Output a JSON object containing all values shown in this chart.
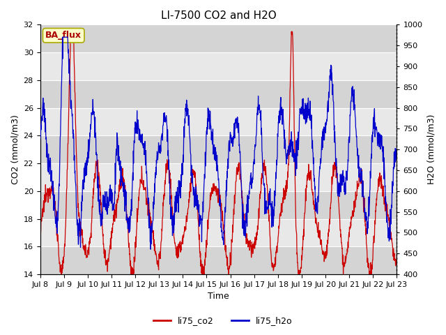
{
  "title": "LI-7500 CO2 and H2O",
  "xlabel": "Time",
  "ylabel_left": "CO2 (mmol/m3)",
  "ylabel_right": "H2O (mmol/m3)",
  "ylim_left": [
    14,
    32
  ],
  "ylim_right": [
    400,
    1000
  ],
  "yticks_left": [
    14,
    16,
    18,
    20,
    22,
    24,
    26,
    28,
    30,
    32
  ],
  "yticks_right": [
    400,
    450,
    500,
    550,
    600,
    650,
    700,
    750,
    800,
    850,
    900,
    950,
    1000
  ],
  "xtick_labels": [
    "Jul 8",
    "Jul 9",
    "Jul 10",
    "Jul 11",
    "Jul 12",
    "Jul 13",
    "Jul 14",
    "Jul 15",
    "Jul 16",
    "Jul 17",
    "Jul 18",
    "Jul 19",
    "Jul 20",
    "Jul 21",
    "Jul 22",
    "Jul 23"
  ],
  "color_co2": "#cc0000",
  "color_h2o": "#0000cc",
  "legend_co2": "li75_co2",
  "legend_h2o": "li75_h2o",
  "ba_flux_label": "BA_flux",
  "ba_flux_bg": "#ffffcc",
  "ba_flux_border": "#aaaa00",
  "ba_flux_text_color": "#aa0000",
  "plot_bg": "#e8e8e8",
  "grid_color": "#ffffff",
  "title_fontsize": 11,
  "axis_label_fontsize": 9,
  "tick_fontsize": 8,
  "legend_fontsize": 9,
  "band_colors": [
    "#d8d8d8",
    "#e8e8e8"
  ]
}
